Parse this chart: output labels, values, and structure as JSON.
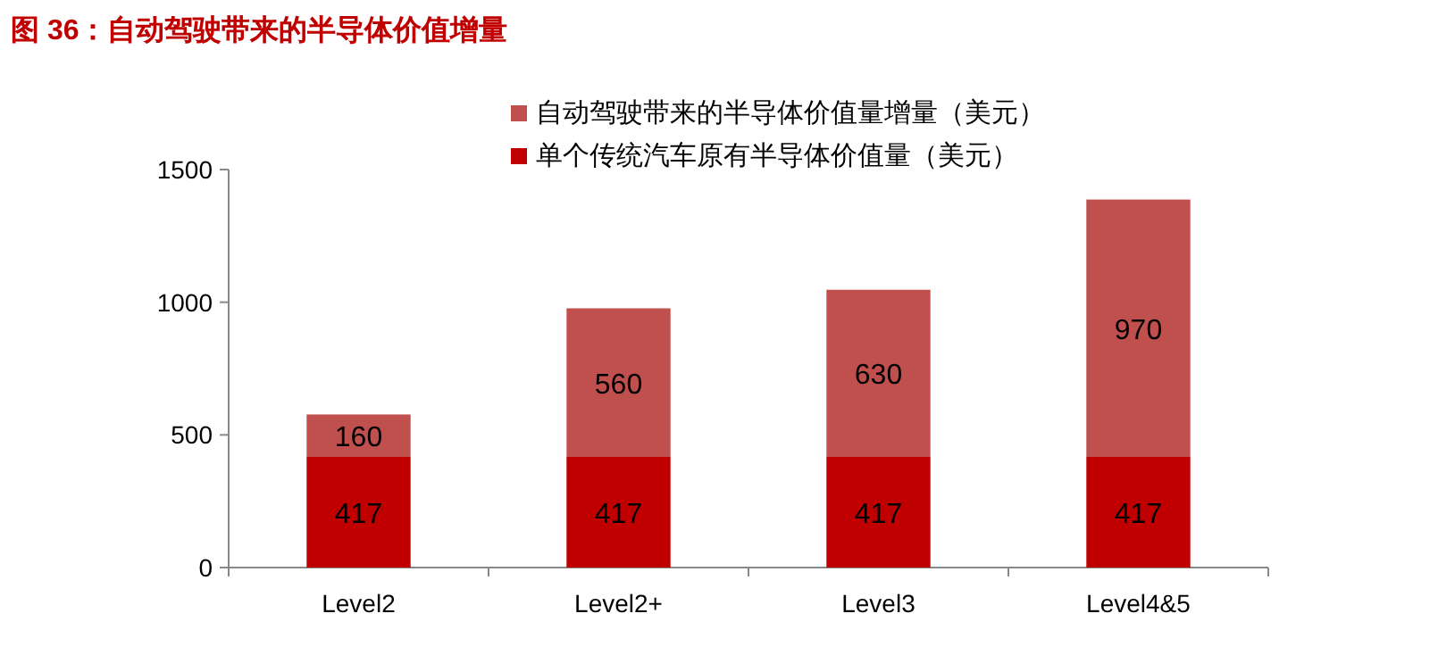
{
  "chart_data": {
    "type": "bar",
    "stacked": true,
    "title": "图 36：自动驾驶带来的半导体价值增量",
    "categories": [
      "Level2",
      "Level2+",
      "Level3",
      "Level4&5"
    ],
    "series": [
      {
        "name": "单个传统汽车原有半导体价值量（美元）",
        "color": "#c00000",
        "values": [
          417,
          417,
          417,
          417
        ]
      },
      {
        "name": "自动驾驶带来的半导体价值量增量（美元）",
        "color": "#c0504d",
        "values": [
          160,
          560,
          630,
          970
        ]
      }
    ],
    "ylim": [
      0,
      1500
    ],
    "yticks": [
      0,
      500,
      1000,
      1500
    ],
    "grid": false,
    "legend": "top",
    "data_labels": true
  }
}
